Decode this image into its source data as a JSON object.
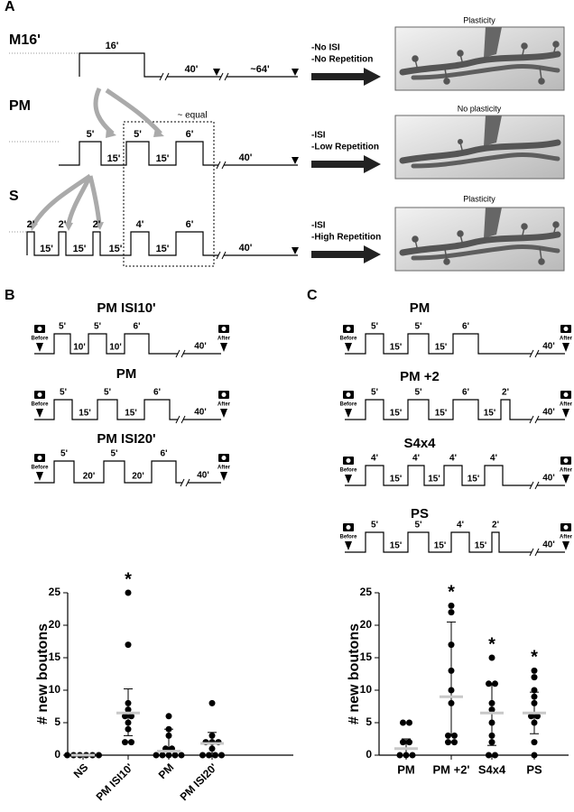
{
  "panel_labels": [
    "A",
    "B",
    "C"
  ],
  "panel_a": {
    "rows": [
      {
        "label": "M16'",
        "pulses": [
          "16'"
        ],
        "intervals": [],
        "tail": [
          "40'",
          "~64'"
        ],
        "conditions": [
          "-No ISI",
          "-No Repetition"
        ],
        "outcome": "Plasticity"
      },
      {
        "label": "PM",
        "pulses": [
          "5'",
          "5'",
          "6'"
        ],
        "intervals": [
          "15'",
          "15'"
        ],
        "tail": [
          "40'"
        ],
        "conditions": [
          "-ISI",
          "-Low Repetition"
        ],
        "outcome": "No plasticity"
      },
      {
        "label": "S",
        "pulses": [
          "2'",
          "2'",
          "2'",
          "4'",
          "6'"
        ],
        "intervals": [
          "15'",
          "15'",
          "15'",
          "15'"
        ],
        "tail": [
          "40'"
        ],
        "conditions": [
          "-ISI",
          "-High Repetition"
        ],
        "outcome": "Plasticity"
      }
    ],
    "box_label": "~ equal"
  },
  "camera_labels": {
    "before": "Before",
    "after": "After"
  },
  "panel_b": {
    "protocols": [
      {
        "title": "PM ISI10'",
        "pulses": [
          "5'",
          "5'",
          "6'"
        ],
        "intervals": [
          "10'",
          "10'"
        ],
        "tail": [
          "40'"
        ]
      },
      {
        "title": "PM",
        "pulses": [
          "5'",
          "5'",
          "6'"
        ],
        "intervals": [
          "15'",
          "15'"
        ],
        "tail": [
          "40'"
        ]
      },
      {
        "title": "PM ISI20'",
        "pulses": [
          "5'",
          "5'",
          "6'"
        ],
        "intervals": [
          "20'",
          "20'"
        ],
        "tail": [
          "40'"
        ]
      }
    ]
  },
  "panel_c": {
    "protocols": [
      {
        "title": "PM",
        "pulses": [
          "5'",
          "5'",
          "6'"
        ],
        "intervals": [
          "15'",
          "15'"
        ],
        "tail": [
          "40'"
        ]
      },
      {
        "title": "PM +2",
        "pulses": [
          "5'",
          "5'",
          "6'",
          "2'"
        ],
        "intervals": [
          "15'",
          "15'",
          "15'"
        ],
        "tail": [
          "40'"
        ]
      },
      {
        "title": "S4x4",
        "pulses": [
          "4'",
          "4'",
          "4'",
          "4'"
        ],
        "intervals": [
          "15'",
          "15'",
          "15'"
        ],
        "tail": [
          "40'"
        ]
      },
      {
        "title": "PS",
        "pulses": [
          "5'",
          "5'",
          "4'",
          "2'"
        ],
        "intervals": [
          "15'",
          "15'",
          "15'"
        ],
        "tail": [
          "40'"
        ]
      }
    ]
  },
  "chart_data": [
    {
      "type": "dot",
      "y_label": "# new boutons",
      "categories": [
        "NS",
        "PM ISI10'",
        "PM",
        "PM ISI20'"
      ],
      "points": [
        [
          0,
          0,
          0,
          0,
          0,
          0
        ],
        [
          25,
          17,
          8,
          7,
          6,
          6,
          5,
          4,
          2,
          2
        ],
        [
          6,
          4,
          3,
          1,
          1,
          0,
          0,
          0,
          0,
          0
        ],
        [
          8,
          3,
          2,
          2,
          2,
          1,
          0,
          0,
          0,
          0
        ]
      ],
      "means": [
        0,
        6.5,
        0.6,
        1.8
      ],
      "error_low": [
        0,
        3,
        0,
        0.3
      ],
      "error_high": [
        0,
        10.2,
        4,
        3.5
      ],
      "significance": [
        null,
        "*",
        null,
        null
      ],
      "ylim": [
        0,
        25
      ],
      "yticks": [
        0,
        5,
        10,
        15,
        20,
        25
      ],
      "point_color": "#000000",
      "mean_color": "#c8c8c8"
    },
    {
      "type": "dot",
      "y_label": "# new boutons",
      "categories": [
        "PM",
        "PM +2'",
        "S4x4",
        "PS"
      ],
      "points": [
        [
          5,
          5,
          2,
          2,
          0,
          0,
          0
        ],
        [
          23,
          22,
          17,
          13,
          10,
          8,
          3,
          3,
          2,
          2
        ],
        [
          15,
          11,
          11,
          8,
          7,
          5,
          3,
          2,
          0,
          0
        ],
        [
          13,
          12,
          10,
          9,
          8,
          6,
          6,
          5,
          2,
          0
        ]
      ],
      "means": [
        1,
        9,
        6.5,
        6.5
      ],
      "error_low": [
        0,
        3,
        1.5,
        3.3
      ],
      "error_high": [
        2.5,
        20.5,
        11,
        9.7
      ],
      "significance": [
        null,
        "*",
        "*",
        "*"
      ],
      "ylim": [
        0,
        25
      ],
      "yticks": [
        0,
        5,
        10,
        15,
        20,
        25
      ],
      "point_color": "#000000",
      "mean_color": "#c8c8c8"
    }
  ]
}
